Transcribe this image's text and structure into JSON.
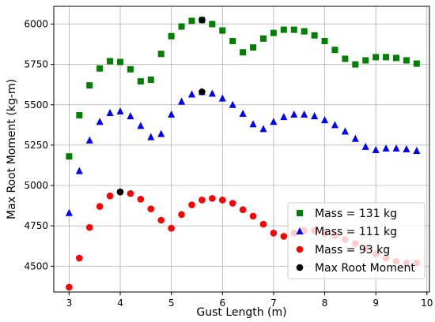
{
  "chart_data": {
    "type": "scatter",
    "xlabel": "Gust Length (m)",
    "ylabel": "Max Root Moment (kg-m)",
    "xlim": [
      2.7,
      10.05
    ],
    "ylim": [
      4340,
      6110
    ],
    "xticks": [
      3,
      4,
      5,
      6,
      7,
      8,
      9,
      10
    ],
    "yticks": [
      4500,
      4750,
      5000,
      5250,
      5500,
      5750,
      6000
    ],
    "grid": true,
    "legend_position": "lower-right",
    "series": [
      {
        "name": "Mass = 131 kg",
        "marker": "square",
        "color": "#008000",
        "x": [
          3.0,
          3.2,
          3.4,
          3.6,
          3.8,
          4.0,
          4.2,
          4.4,
          4.6,
          4.8,
          5.0,
          5.2,
          5.4,
          5.6,
          5.8,
          6.0,
          6.2,
          6.4,
          6.6,
          6.8,
          7.0,
          7.2,
          7.4,
          7.6,
          7.8,
          8.0,
          8.2,
          8.4,
          8.6,
          8.8,
          9.0,
          9.2,
          9.4,
          9.6,
          9.8
        ],
        "y": [
          5180,
          5435,
          5620,
          5725,
          5770,
          5765,
          5720,
          5645,
          5655,
          5815,
          5925,
          5985,
          6020,
          6025,
          6000,
          5960,
          5895,
          5825,
          5855,
          5910,
          5945,
          5965,
          5965,
          5955,
          5930,
          5895,
          5840,
          5785,
          5750,
          5775,
          5795,
          5795,
          5790,
          5775,
          5755
        ]
      },
      {
        "name": "Mass = 111 kg",
        "marker": "triangle",
        "color": "#0000ff",
        "x": [
          3.0,
          3.2,
          3.4,
          3.6,
          3.8,
          4.0,
          4.2,
          4.4,
          4.6,
          4.8,
          5.0,
          5.2,
          5.4,
          5.6,
          5.8,
          6.0,
          6.2,
          6.4,
          6.6,
          6.8,
          7.0,
          7.2,
          7.4,
          7.6,
          7.8,
          8.0,
          8.2,
          8.4,
          8.6,
          8.8,
          9.0,
          9.2,
          9.4,
          9.6,
          9.8
        ],
        "y": [
          4830,
          5090,
          5280,
          5395,
          5450,
          5460,
          5430,
          5370,
          5300,
          5320,
          5440,
          5520,
          5565,
          5580,
          5570,
          5540,
          5500,
          5445,
          5380,
          5350,
          5395,
          5425,
          5440,
          5440,
          5430,
          5405,
          5375,
          5335,
          5290,
          5240,
          5220,
          5230,
          5230,
          5225,
          5215
        ]
      },
      {
        "name": "Mass = 93 kg",
        "marker": "circle",
        "color": "#ff0000",
        "x": [
          3.0,
          3.2,
          3.4,
          3.6,
          3.8,
          4.0,
          4.2,
          4.4,
          4.6,
          4.8,
          5.0,
          5.2,
          5.4,
          5.6,
          5.8,
          6.0,
          6.2,
          6.4,
          6.6,
          6.8,
          7.0,
          7.2,
          7.4,
          7.6,
          7.8,
          8.0,
          8.2,
          8.4,
          8.6,
          8.8,
          9.0,
          9.2,
          9.4,
          9.6,
          9.8
        ],
        "y": [
          4370,
          4550,
          4740,
          4870,
          4935,
          4960,
          4950,
          4915,
          4855,
          4785,
          4735,
          4820,
          4880,
          4910,
          4920,
          4910,
          4890,
          4850,
          4810,
          4760,
          4705,
          4685,
          4705,
          4720,
          4720,
          4705,
          4690,
          4665,
          4640,
          4610,
          4575,
          4550,
          4530,
          4520,
          4520
        ]
      },
      {
        "name": "Max Root Moment",
        "marker": "circle",
        "color": "#000000",
        "x": [
          5.6,
          5.6,
          4.0
        ],
        "y": [
          6025,
          5580,
          4960
        ]
      }
    ]
  }
}
